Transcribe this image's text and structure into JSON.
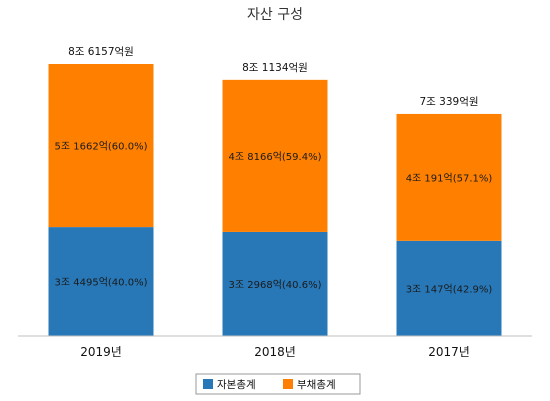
{
  "chart_data": {
    "type": "bar",
    "stacked": true,
    "title": "자산 구성",
    "categories": [
      "2019년",
      "2018년",
      "2017년"
    ],
    "totals": [
      86157,
      81134,
      70339
    ],
    "total_labels": [
      "8조 6157억원",
      "8조 1134억원",
      "7조 339억원"
    ],
    "series": [
      {
        "name": "자본총계",
        "values": [
          34495,
          32968,
          30147
        ],
        "labels": [
          "3조 4495억(40.0%)",
          "3조 2968억(40.6%)",
          "3조 147억(42.9%)"
        ]
      },
      {
        "name": "부채총계",
        "values": [
          51662,
          48166,
          40191
        ],
        "labels": [
          "5조 1662억(60.0%)",
          "4조 8166억(59.4%)",
          "4조 191억(57.1%)"
        ]
      }
    ],
    "colors": [
      "#2878b8",
      "#ff8000"
    ],
    "legend_position": "bottom",
    "grid": false
  }
}
